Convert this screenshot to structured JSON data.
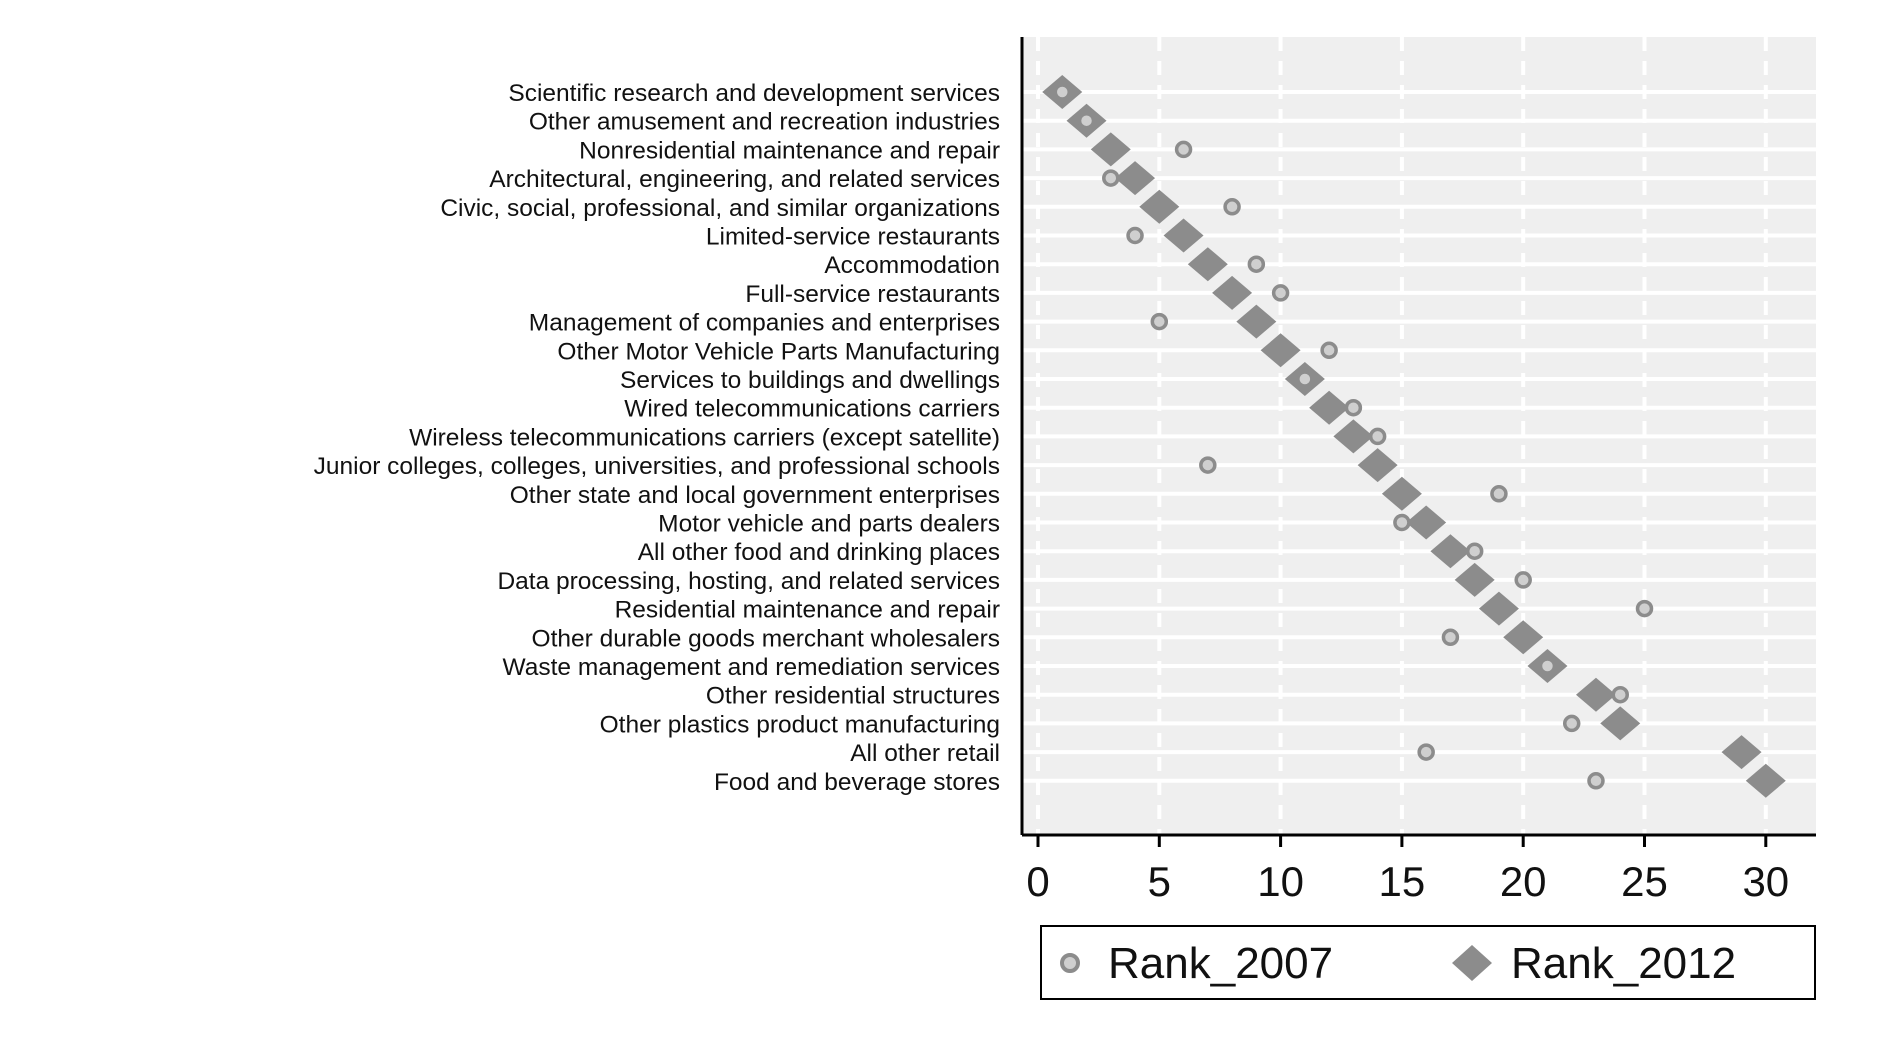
{
  "chart_data": {
    "type": "scatter",
    "orientation": "horizontal-categories",
    "title": "",
    "xlabel": "",
    "ylabel": "",
    "xlim": [
      0,
      32
    ],
    "xticks": [
      0,
      5,
      10,
      15,
      20,
      25,
      30
    ],
    "xtick_labels": [
      "0",
      "5",
      "10",
      "15",
      "20",
      "25",
      "30"
    ],
    "grid": "vertical dashed + horizontal solid",
    "legend_position": "bottom",
    "categories": [
      "Scientific research and development services",
      "Other amusement and recreation industries",
      "Nonresidential maintenance and repair",
      "Architectural, engineering, and related services",
      "Civic, social, professional, and similar organizations",
      "Limited-service restaurants",
      "Accommodation",
      "Full-service restaurants",
      "Management of companies and enterprises",
      "Other Motor Vehicle Parts Manufacturing",
      "Services to buildings and dwellings",
      "Wired telecommunications carriers",
      "Wireless telecommunications carriers (except satellite)",
      "Junior colleges, colleges, universities, and professional schools",
      "Other state and local government enterprises",
      "Motor vehicle and parts dealers",
      "All other food and drinking places",
      "Data processing, hosting, and related services",
      "Residential maintenance and repair",
      "Other durable goods merchant wholesalers",
      "Waste management and remediation services",
      "Other residential structures",
      "Other plastics product manufacturing",
      "All other retail",
      "Food and beverage stores"
    ],
    "series": [
      {
        "name": "Rank_2007",
        "marker": "circle",
        "color": "#8c8c8c",
        "fill": "#cfcfcf",
        "values": [
          1,
          2,
          6,
          3,
          8,
          4,
          9,
          10,
          5,
          12,
          11,
          13,
          14,
          7,
          19,
          15,
          18,
          20,
          25,
          17,
          21,
          24,
          22,
          16,
          23
        ]
      },
      {
        "name": "Rank_2012",
        "marker": "diamond",
        "color": "#8c8c8c",
        "fill": "#8c8c8c",
        "values": [
          1,
          2,
          3,
          4,
          5,
          6,
          7,
          8,
          9,
          10,
          11,
          12,
          13,
          14,
          15,
          16,
          17,
          18,
          19,
          20,
          21,
          23,
          24,
          29,
          30
        ]
      }
    ]
  },
  "colors": {
    "background": "#ffffff",
    "plot_background": "#efefef",
    "grid": "#ffffff",
    "axis": "#000000",
    "marker": "#8c8c8c"
  }
}
